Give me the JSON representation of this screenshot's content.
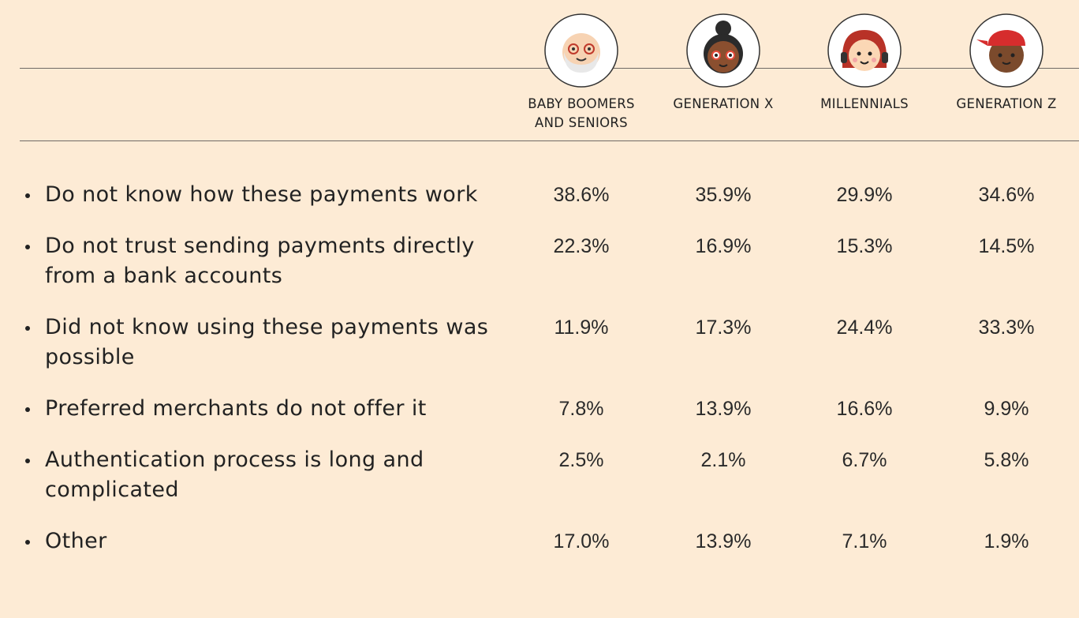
{
  "table": {
    "columns": [
      "BABY BOOMERS AND SENIORS",
      "GENERATION X",
      "MILLENNIALS",
      "GENERATION Z"
    ],
    "rows": [
      [
        "Do not know how these payments work",
        "38.6%",
        "35.9%",
        "29.9%",
        "34.6%"
      ],
      [
        "Do not trust sending payments directly from a bank accounts",
        "22.3%",
        "16.9%",
        "15.3%",
        "14.5%"
      ],
      [
        "Did not know using these payments was possible",
        "11.9%",
        "17.3%",
        "24.4%",
        "33.3%"
      ],
      [
        "Preferred merchants do not offer it",
        "7.8%",
        "13.9%",
        "16.6%",
        "9.9%"
      ],
      [
        "Authentication process is long and complicated",
        "2.5%",
        "2.1%",
        "6.7%",
        "5.8%"
      ],
      [
        "Other",
        "17.0%",
        "13.9%",
        "7.1%",
        "1.9%"
      ]
    ]
  }
}
